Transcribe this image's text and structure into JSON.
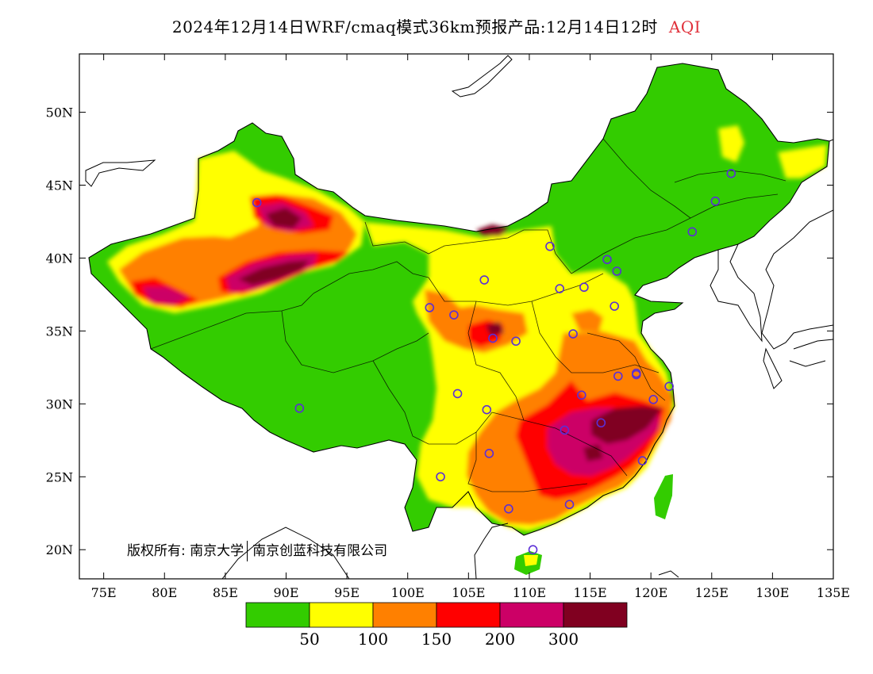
{
  "title": {
    "main": "2024年12月14日WRF/cmaq模式36km预报产品:12月14日12时",
    "variable": "AQI"
  },
  "copyright": {
    "prefix": "版权所有:",
    "org1": "南京大学",
    "org2": "南京创蓝科技有限公司"
  },
  "axes": {
    "lat_labels": [
      "50N",
      "45N",
      "40N",
      "35N",
      "30N",
      "25N",
      "20N"
    ],
    "lat_values": [
      50,
      45,
      40,
      35,
      30,
      25,
      20
    ],
    "lon_labels": [
      "75E",
      "80E",
      "85E",
      "90E",
      "95E",
      "100E",
      "105E",
      "110E",
      "115E",
      "120E",
      "125E",
      "130E",
      "135E"
    ],
    "lon_values": [
      75,
      80,
      85,
      90,
      95,
      100,
      105,
      110,
      115,
      120,
      125,
      130,
      135
    ],
    "lat_range": [
      18,
      54
    ],
    "lon_range": [
      73,
      135
    ]
  },
  "legend": {
    "colors": [
      "#33cc00",
      "#ffff00",
      "#ff8000",
      "#ff0000",
      "#cc0066",
      "#800020"
    ],
    "labels": [
      "50",
      "100",
      "150",
      "200",
      "300"
    ]
  },
  "stations": [
    [
      87.6,
      43.8
    ],
    [
      91.1,
      29.7
    ],
    [
      101.8,
      36.6
    ],
    [
      103.8,
      36.1
    ],
    [
      106.3,
      38.5
    ],
    [
      108.9,
      34.3
    ],
    [
      111.7,
      40.8
    ],
    [
      112.5,
      37.9
    ],
    [
      114.5,
      38.0
    ],
    [
      116.4,
      39.9
    ],
    [
      117.2,
      39.1
    ],
    [
      117.0,
      36.7
    ],
    [
      113.6,
      34.8
    ],
    [
      117.3,
      31.9
    ],
    [
      118.8,
      32.1
    ],
    [
      121.5,
      31.2
    ],
    [
      120.2,
      30.3
    ],
    [
      114.3,
      30.6
    ],
    [
      112.9,
      28.2
    ],
    [
      115.9,
      28.7
    ],
    [
      119.3,
      26.1
    ],
    [
      113.3,
      23.1
    ],
    [
      108.3,
      22.8
    ],
    [
      110.3,
      20.0
    ],
    [
      106.7,
      26.6
    ],
    [
      102.7,
      25.0
    ],
    [
      104.1,
      30.7
    ],
    [
      106.5,
      29.6
    ],
    [
      125.3,
      43.9
    ],
    [
      126.6,
      45.8
    ],
    [
      123.4,
      41.8
    ],
    [
      118.8,
      32.0
    ],
    [
      107.0,
      34.5
    ]
  ]
}
